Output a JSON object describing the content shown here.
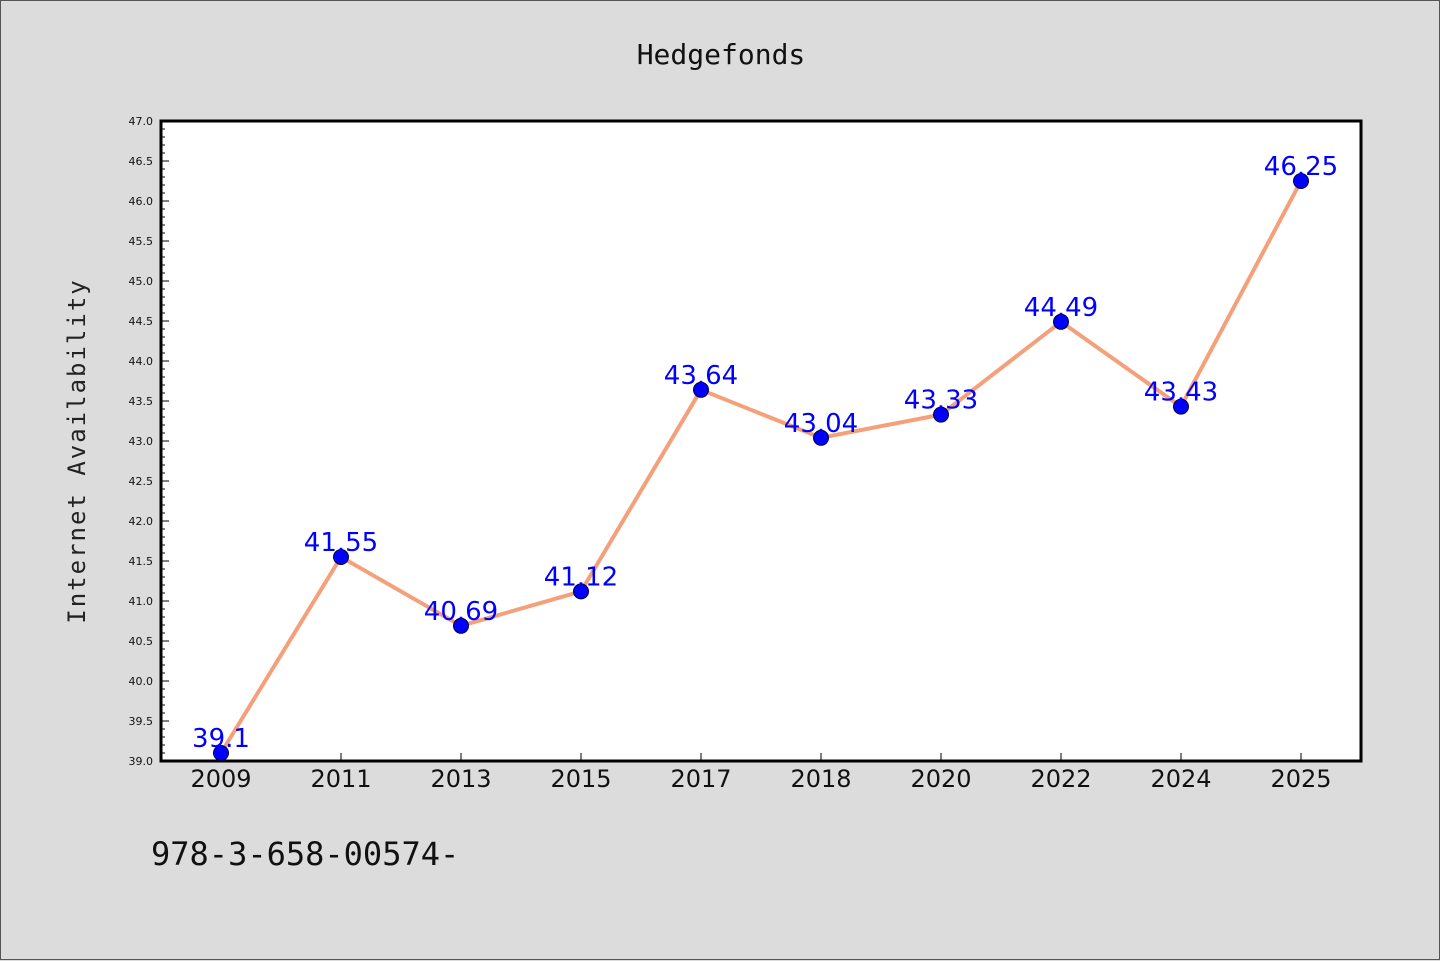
{
  "chart_data": {
    "type": "line",
    "title": "Hedgefonds",
    "xlabel": "",
    "ylabel": "Internet Availability",
    "categories": [
      "2009",
      "2011",
      "2013",
      "2015",
      "2017",
      "2018",
      "2020",
      "2022",
      "2024",
      "2025"
    ],
    "series": [
      {
        "values": [
          39.1,
          41.55,
          40.69,
          41.12,
          43.64,
          43.04,
          43.33,
          44.49,
          43.43,
          46.25
        ],
        "labels": [
          "39.1",
          "41.55",
          "40.69",
          "41.12",
          "43.64",
          "43.04",
          "43.33",
          "44.49",
          "43.43",
          "46.25"
        ]
      }
    ],
    "ylim": [
      39.0,
      47.0
    ],
    "yticks": [
      "39.0",
      "39.5",
      "40.0",
      "40.5",
      "41.0",
      "41.5",
      "42.0",
      "42.5",
      "43.0",
      "43.5",
      "44.0",
      "44.5",
      "45.0",
      "45.5",
      "46.0",
      "46.5",
      "47.0"
    ],
    "grid": false,
    "colors": {
      "line": "#f4a07a",
      "marker": "#0000ff",
      "data_label": "#0000ff",
      "background": "#dcdcdc",
      "plot_background": "#ffffff"
    }
  },
  "footnote": "978-3-658-00574-"
}
